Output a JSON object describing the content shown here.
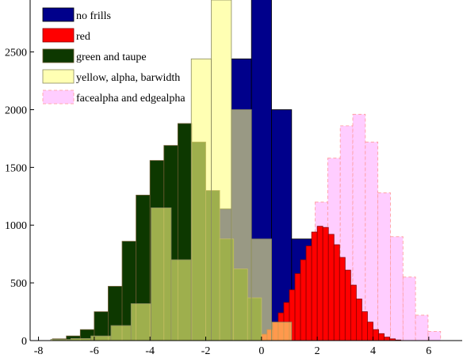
{
  "chart_data": {
    "type": "bar",
    "title": "",
    "xlabel": "",
    "ylabel": "",
    "xlim": [
      -8.3,
      7.2
    ],
    "ylim": [
      0,
      2950
    ],
    "xticks": [
      -8,
      -6,
      -4,
      -2,
      0,
      2,
      4,
      6
    ],
    "yticks": [
      0,
      500,
      1000,
      1500,
      2000,
      2500
    ],
    "legend_position": "top-left",
    "series": [
      {
        "name": "no frills",
        "color": "#00008b",
        "edge": "#000000",
        "fill_opacity": 1,
        "edge_dash": "",
        "bin_width": 0.72,
        "x": [
          -2.16,
          -1.44,
          -0.72,
          0.0,
          0.72,
          1.44,
          2.16
        ],
        "values": [
          320,
          1140,
          2440,
          2960,
          2000,
          880,
          160
        ]
      },
      {
        "name": "red",
        "color": "#ff0000",
        "edge": "#880000",
        "fill_opacity": 1,
        "edge_dash": "",
        "bin_width": 0.2,
        "x": [
          -0.5,
          -0.3,
          -0.1,
          0.1,
          0.3,
          0.5,
          0.7,
          0.9,
          1.1,
          1.3,
          1.5,
          1.7,
          1.9,
          2.1,
          2.3,
          2.5,
          2.7,
          2.9,
          3.1,
          3.3,
          3.5,
          3.7,
          3.9,
          4.1,
          4.3,
          4.5,
          4.7,
          4.9
        ],
        "values": [
          5,
          15,
          30,
          55,
          95,
          160,
          240,
          330,
          440,
          580,
          700,
          820,
          940,
          990,
          980,
          920,
          830,
          720,
          610,
          480,
          360,
          250,
          160,
          95,
          60,
          30,
          15,
          5
        ]
      },
      {
        "name": "green and taupe",
        "color": "#0d3800",
        "edge": "#6a5a30",
        "fill_opacity": 1,
        "edge_dash": "",
        "bin_width": 0.5,
        "x": [
          -7.25,
          -6.75,
          -6.25,
          -5.75,
          -5.25,
          -4.75,
          -4.25,
          -3.75,
          -3.25,
          -2.75,
          -2.25,
          -1.75,
          -1.25,
          -0.75,
          -0.25
        ],
        "values": [
          15,
          40,
          95,
          250,
          470,
          860,
          1260,
          1560,
          1690,
          1880,
          1720,
          1300,
          880,
          620,
          370
        ]
      },
      {
        "name": "yellow, alpha, barwidth",
        "color": "#ffff80",
        "edge": "#8a8a60",
        "fill_opacity": 0.6,
        "edge_dash": "",
        "bin_width": 0.72,
        "x": [
          -7.2,
          -6.48,
          -5.76,
          -5.04,
          -4.32,
          -3.6,
          -2.88,
          -2.16,
          -1.44,
          -0.72,
          0.0,
          0.72
        ],
        "values": [
          10,
          18,
          40,
          130,
          320,
          1150,
          700,
          2440,
          2950,
          2000,
          880,
          160
        ]
      },
      {
        "name": "facealpha and edgealpha",
        "color": "#ffc8ff",
        "edge": "#ff9999",
        "fill_opacity": 0.9,
        "edge_dash": "4,3",
        "bin_width": 0.45,
        "x": [
          -1.45,
          -1.0,
          -0.55,
          -0.1,
          0.35,
          0.8,
          1.25,
          1.7,
          2.15,
          2.6,
          3.05,
          3.5,
          3.95,
          4.4,
          4.85,
          5.3,
          5.75,
          6.2
        ],
        "values": [
          5,
          15,
          35,
          75,
          160,
          290,
          490,
          760,
          1200,
          1580,
          1860,
          1960,
          1720,
          1280,
          900,
          550,
          220,
          80
        ]
      }
    ]
  }
}
